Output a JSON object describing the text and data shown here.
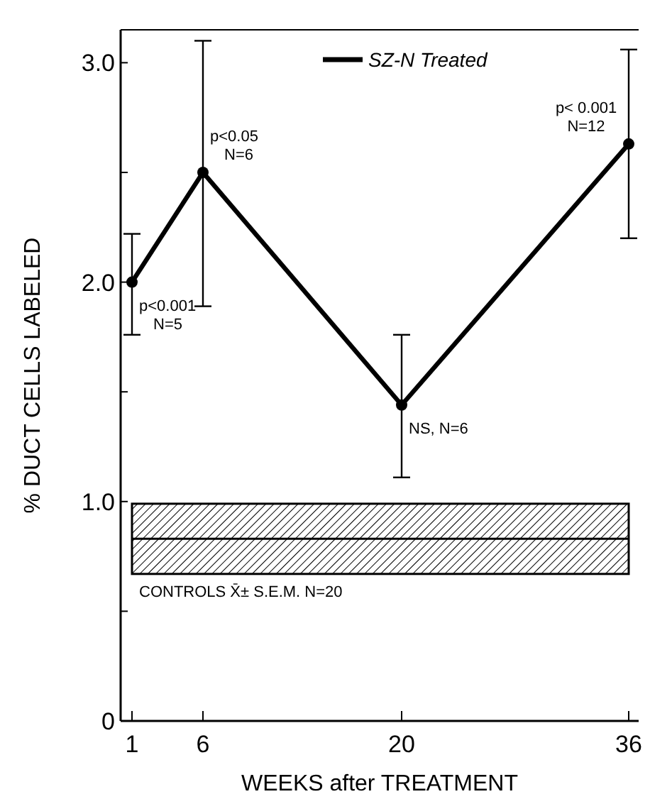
{
  "chart_data": {
    "type": "line",
    "xlabel": "WEEKS after TREATMENT",
    "ylabel": "% DUCT CELLS LABELED",
    "x": [
      1,
      6,
      20,
      36
    ],
    "series": [
      {
        "name": "SZ-N Treated",
        "color": "#000000",
        "values": [
          2.0,
          2.5,
          1.44,
          2.63
        ],
        "errors": [
          [
            1.76,
            2.22
          ],
          [
            1.89,
            3.1
          ],
          [
            1.11,
            1.76
          ],
          [
            2.2,
            3.06
          ]
        ]
      }
    ],
    "xlim": [
      0.2,
      36.7
    ],
    "xticks": [
      1,
      6,
      20,
      36
    ],
    "ylim": [
      0,
      3.15
    ],
    "yticks": [
      0,
      {
        "value": 0.5,
        "label": null
      },
      {
        "value": 1,
        "label": "1.0"
      },
      {
        "value": 1.5,
        "label": null
      },
      {
        "value": 2,
        "label": "2.0"
      },
      {
        "value": 2.5,
        "label": null
      },
      {
        "value": 3,
        "label": "3.0"
      }
    ],
    "bands": [
      {
        "axis": "y",
        "from": 0.67,
        "to": 0.99,
        "label": "CONTROLS X̄± S.E.M. N=20",
        "color": "#000000"
      }
    ],
    "ref_lines": [
      {
        "axis": "y",
        "value": 0.83,
        "color": "#000000"
      }
    ],
    "annotations": [
      {
        "text": "p<0.001\nN=5",
        "x": 1,
        "y": 2.0
      },
      {
        "text": "p<0.05\nN=6",
        "x": 6,
        "y": 2.5
      },
      {
        "text": "NS, N=6",
        "x": 20,
        "y": 1.44
      },
      {
        "text": "p< 0.001\nN=12",
        "x": 36,
        "y": 2.63
      }
    ],
    "marker": "circle",
    "line_style": "solid",
    "legend": "top",
    "grid": false
  }
}
